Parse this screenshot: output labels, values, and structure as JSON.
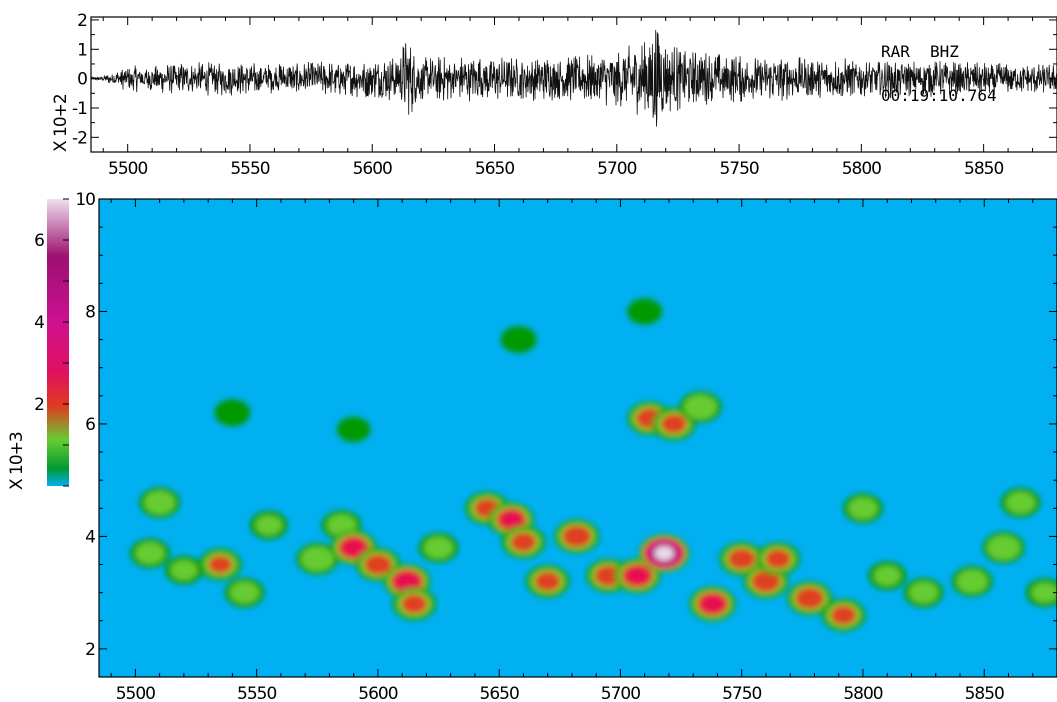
{
  "chart_data": [
    {
      "type": "line",
      "panel": "seismogram",
      "station_label": "RAR",
      "channel_label": "BHZ",
      "time_label": "00:19:10.764",
      "multiplier_label": "X 10+2",
      "xlim": [
        5485,
        5880
      ],
      "ylim": [
        -2.5,
        2.1
      ],
      "xticks": [
        5500,
        5550,
        5600,
        5650,
        5700,
        5750,
        5800,
        5850
      ],
      "yticks": [
        -2,
        -1,
        0,
        1,
        2
      ],
      "envelope": {
        "x": [
          5485,
          5490,
          5500,
          5520,
          5540,
          5560,
          5580,
          5600,
          5610,
          5614,
          5620,
          5640,
          5660,
          5680,
          5700,
          5710,
          5716,
          5720,
          5730,
          5740,
          5760,
          5780,
          5800,
          5820,
          5840,
          5860,
          5880
        ],
        "amp": [
          0.05,
          0.1,
          0.45,
          0.55,
          0.6,
          0.55,
          0.6,
          0.7,
          0.8,
          1.5,
          0.8,
          0.8,
          0.75,
          0.8,
          1.0,
          1.3,
          2.2,
          1.3,
          1.1,
          0.9,
          0.8,
          0.75,
          0.7,
          0.65,
          0.6,
          0.55,
          0.5
        ]
      }
    },
    {
      "type": "heatmap",
      "panel": "spectrogram",
      "xlim": [
        5485,
        5880
      ],
      "ylim": [
        1.5,
        10
      ],
      "xticks": [
        5500,
        5550,
        5600,
        5650,
        5700,
        5750,
        5800,
        5850
      ],
      "yticks": [
        2,
        4,
        6,
        8,
        10
      ],
      "colorbar": {
        "ticks": [
          2,
          4,
          6
        ],
        "range": [
          0,
          7
        ],
        "multiplier_label": "X 10+3",
        "colors": [
          "#00b0f0",
          "#009900",
          "#66cc33",
          "#e04020",
          "#e81050",
          "#cc1090",
          "#9c1070",
          "#e8d8e8"
        ]
      },
      "background_color": "#00b0f0",
      "clusters": [
        {
          "x": 5510,
          "y": 4.6,
          "v": 2.0
        },
        {
          "x": 5506,
          "y": 3.7,
          "v": 1.8
        },
        {
          "x": 5520,
          "y": 3.4,
          "v": 1.6
        },
        {
          "x": 5535,
          "y": 3.5,
          "v": 2.4
        },
        {
          "x": 5545,
          "y": 3.0,
          "v": 1.8
        },
        {
          "x": 5555,
          "y": 4.2,
          "v": 1.6
        },
        {
          "x": 5575,
          "y": 3.6,
          "v": 2.2
        },
        {
          "x": 5585,
          "y": 4.2,
          "v": 1.8
        },
        {
          "x": 5590,
          "y": 3.8,
          "v": 3.4
        },
        {
          "x": 5600,
          "y": 3.5,
          "v": 2.8
        },
        {
          "x": 5612,
          "y": 3.2,
          "v": 3.6
        },
        {
          "x": 5615,
          "y": 2.8,
          "v": 2.6
        },
        {
          "x": 5625,
          "y": 3.8,
          "v": 1.8
        },
        {
          "x": 5645,
          "y": 4.5,
          "v": 2.6
        },
        {
          "x": 5655,
          "y": 4.3,
          "v": 3.2
        },
        {
          "x": 5660,
          "y": 3.9,
          "v": 2.6
        },
        {
          "x": 5670,
          "y": 3.2,
          "v": 2.6
        },
        {
          "x": 5682,
          "y": 4.0,
          "v": 3.0
        },
        {
          "x": 5695,
          "y": 3.3,
          "v": 2.8
        },
        {
          "x": 5707,
          "y": 3.3,
          "v": 3.4
        },
        {
          "x": 5712,
          "y": 6.1,
          "v": 2.8
        },
        {
          "x": 5718,
          "y": 3.7,
          "v": 6.5
        },
        {
          "x": 5722,
          "y": 6.0,
          "v": 2.6
        },
        {
          "x": 5738,
          "y": 2.8,
          "v": 3.4
        },
        {
          "x": 5733,
          "y": 6.3,
          "v": 2.2
        },
        {
          "x": 5750,
          "y": 3.6,
          "v": 2.8
        },
        {
          "x": 5760,
          "y": 3.2,
          "v": 3.0
        },
        {
          "x": 5765,
          "y": 3.6,
          "v": 2.6
        },
        {
          "x": 5778,
          "y": 2.9,
          "v": 3.0
        },
        {
          "x": 5792,
          "y": 2.6,
          "v": 2.6
        },
        {
          "x": 5800,
          "y": 4.5,
          "v": 1.8
        },
        {
          "x": 5810,
          "y": 3.3,
          "v": 1.6
        },
        {
          "x": 5825,
          "y": 3.0,
          "v": 1.8
        },
        {
          "x": 5845,
          "y": 3.2,
          "v": 2.0
        },
        {
          "x": 5858,
          "y": 3.8,
          "v": 2.2
        },
        {
          "x": 5865,
          "y": 4.6,
          "v": 1.8
        },
        {
          "x": 5875,
          "y": 3.0,
          "v": 1.6
        },
        {
          "x": 5658,
          "y": 7.5,
          "v": 1.4
        },
        {
          "x": 5710,
          "y": 8.0,
          "v": 1.3
        },
        {
          "x": 5540,
          "y": 6.2,
          "v": 1.4
        },
        {
          "x": 5590,
          "y": 5.9,
          "v": 1.2
        }
      ]
    }
  ]
}
